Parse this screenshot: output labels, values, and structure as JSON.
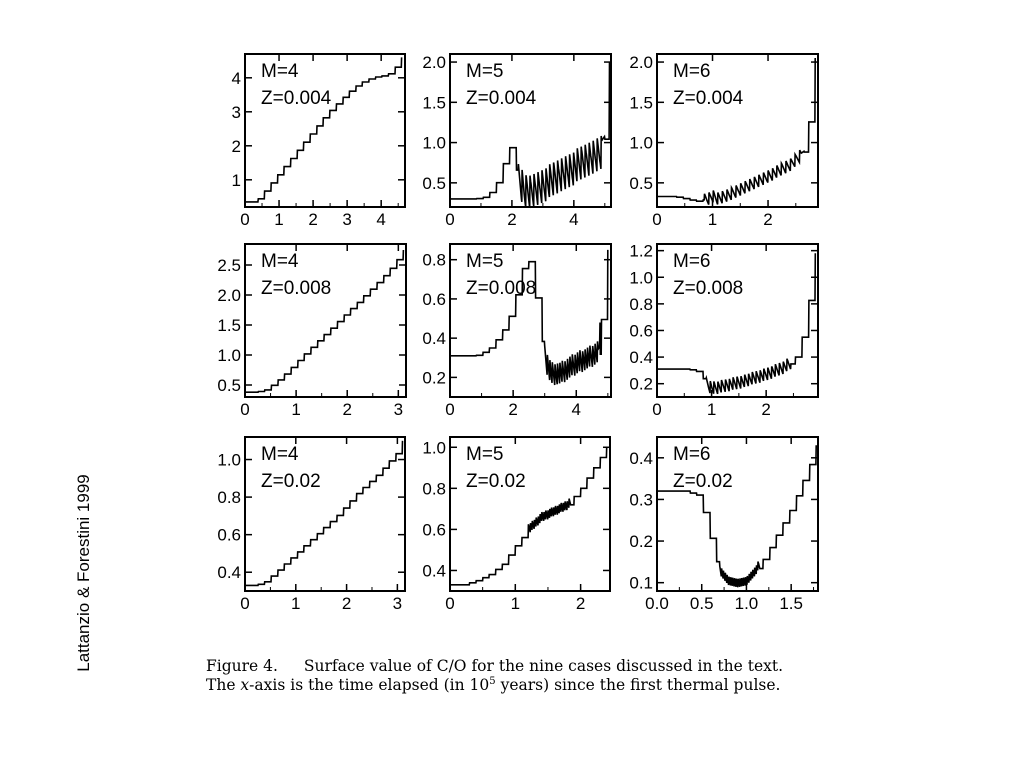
{
  "side_label": "Lattanzio & Forestini 1999",
  "caption": {
    "lead": "Figure 4.",
    "text_a": "Surface value of C/O for the nine cases discussed in the text. The ",
    "x_var": "x",
    "text_b": "-axis is the time elapsed (in 10",
    "sup": "5",
    "text_c": " years) since the first thermal pulse."
  },
  "chart_data": [
    {
      "type": "line",
      "title_lines": [
        "M=4",
        "Z=0.004"
      ],
      "x_ticks": [
        0,
        1,
        2,
        3,
        4
      ],
      "y_ticks": [
        1.0,
        2.0,
        3.0,
        4.0
      ],
      "xlim": [
        0,
        4.7
      ],
      "ylim": [
        0.2,
        4.7
      ],
      "x": [
        0.0,
        0.2,
        0.4,
        0.6,
        0.8,
        1.0,
        1.2,
        1.4,
        1.6,
        1.8,
        2.0,
        2.2,
        2.4,
        2.6,
        2.8,
        3.0,
        3.2,
        3.4,
        3.6,
        3.8,
        4.0,
        4.2,
        4.4,
        4.6
      ],
      "y": [
        0.35,
        0.35,
        0.45,
        0.7,
        0.95,
        1.2,
        1.45,
        1.7,
        1.95,
        2.2,
        2.45,
        2.7,
        2.95,
        3.15,
        3.35,
        3.55,
        3.72,
        3.85,
        3.95,
        4.02,
        4.05,
        4.1,
        4.3,
        4.6
      ]
    },
    {
      "type": "line",
      "title_lines": [
        "M=5",
        "Z=0.004"
      ],
      "x_ticks": [
        0,
        2,
        4
      ],
      "y_ticks": [
        0.5,
        1.0,
        1.5,
        2.0
      ],
      "xlim": [
        0,
        5.2
      ],
      "ylim": [
        0.2,
        2.1
      ],
      "x": [
        0.0,
        0.8,
        1.2,
        1.5,
        1.7,
        1.85,
        1.95,
        2.05,
        2.2,
        2.4,
        2.6,
        3.0,
        3.4,
        3.8,
        4.2,
        4.6,
        4.9,
        5.1,
        5.15
      ],
      "y": [
        0.3,
        0.3,
        0.33,
        0.5,
        0.72,
        0.88,
        0.95,
        0.85,
        0.55,
        0.38,
        0.38,
        0.47,
        0.55,
        0.65,
        0.73,
        0.82,
        0.9,
        1.7,
        2.0
      ],
      "oscillation": {
        "from_x": 2.2,
        "to_x": 5.0,
        "amplitude": 0.22
      }
    },
    {
      "type": "line",
      "title_lines": [
        "M=6",
        "Z=0.004"
      ],
      "x_ticks": [
        0,
        1,
        2
      ],
      "y_ticks": [
        0.5,
        1.0,
        1.5,
        2.0
      ],
      "xlim": [
        0,
        2.9
      ],
      "ylim": [
        0.2,
        2.1
      ],
      "x": [
        0.0,
        0.3,
        0.5,
        0.7,
        0.9,
        1.0,
        1.1,
        1.3,
        1.6,
        1.9,
        2.2,
        2.4,
        2.6,
        2.7,
        2.8,
        2.85
      ],
      "y": [
        0.33,
        0.33,
        0.3,
        0.27,
        0.3,
        0.33,
        0.3,
        0.35,
        0.45,
        0.55,
        0.65,
        0.72,
        0.85,
        1.1,
        1.6,
        2.05
      ],
      "oscillation": {
        "from_x": 0.85,
        "to_x": 2.65,
        "amplitude": 0.08
      }
    },
    {
      "type": "line",
      "title_lines": [
        "M=4",
        "Z=0.008"
      ],
      "x_ticks": [
        0,
        1,
        2,
        3
      ],
      "y_ticks": [
        0.5,
        1.0,
        1.5,
        2.0,
        2.5
      ],
      "xlim": [
        0,
        3.15
      ],
      "ylim": [
        0.3,
        2.85
      ],
      "x": [
        0.0,
        0.2,
        0.4,
        0.6,
        0.8,
        1.0,
        1.2,
        1.4,
        1.6,
        1.8,
        2.0,
        2.2,
        2.4,
        2.6,
        2.8,
        3.0,
        3.1
      ],
      "y": [
        0.38,
        0.38,
        0.42,
        0.55,
        0.7,
        0.88,
        1.05,
        1.22,
        1.38,
        1.55,
        1.72,
        1.88,
        2.05,
        2.22,
        2.4,
        2.62,
        2.75
      ]
    },
    {
      "type": "line",
      "title_lines": [
        "M=5",
        "Z=0.008"
      ],
      "x_ticks": [
        0,
        2,
        4
      ],
      "y_ticks": [
        0.2,
        0.4,
        0.6,
        0.8
      ],
      "xlim": [
        0,
        5.1
      ],
      "ylim": [
        0.1,
        0.88
      ],
      "x": [
        0.0,
        0.8,
        1.2,
        1.6,
        1.9,
        2.1,
        2.3,
        2.45,
        2.6,
        2.8,
        3.0,
        3.2,
        3.5,
        3.8,
        4.1,
        4.4,
        4.7,
        4.85,
        5.0
      ],
      "y": [
        0.31,
        0.31,
        0.34,
        0.42,
        0.52,
        0.63,
        0.76,
        0.82,
        0.73,
        0.5,
        0.3,
        0.22,
        0.22,
        0.25,
        0.28,
        0.3,
        0.33,
        0.6,
        0.85
      ],
      "oscillation": {
        "from_x": 3.0,
        "to_x": 4.75,
        "amplitude": 0.06
      }
    },
    {
      "type": "line",
      "title_lines": [
        "M=6",
        "Z=0.008"
      ],
      "x_ticks": [
        0,
        1,
        2
      ],
      "y_ticks": [
        0.2,
        0.4,
        0.6,
        0.8,
        1.0,
        1.2
      ],
      "xlim": [
        0,
        2.95
      ],
      "ylim": [
        0.1,
        1.25
      ],
      "x": [
        0.0,
        0.5,
        0.7,
        0.8,
        0.9,
        1.0,
        1.1,
        1.3,
        1.6,
        2.0,
        2.3,
        2.5,
        2.6,
        2.7,
        2.8,
        2.9
      ],
      "y": [
        0.31,
        0.31,
        0.3,
        0.27,
        0.2,
        0.17,
        0.17,
        0.19,
        0.22,
        0.27,
        0.32,
        0.37,
        0.45,
        0.62,
        0.88,
        1.18
      ],
      "oscillation": {
        "from_x": 0.9,
        "to_x": 2.45,
        "amplitude": 0.05
      }
    },
    {
      "type": "line",
      "title_lines": [
        "M=4",
        "Z=0.02"
      ],
      "x_ticks": [
        0,
        1,
        2,
        3
      ],
      "y_ticks": [
        0.4,
        0.6,
        0.8,
        1.0
      ],
      "xlim": [
        0,
        3.15
      ],
      "ylim": [
        0.3,
        1.12
      ],
      "x": [
        0.0,
        0.2,
        0.4,
        0.6,
        0.8,
        1.0,
        1.2,
        1.4,
        1.6,
        1.8,
        2.0,
        2.2,
        2.4,
        2.6,
        2.8,
        3.0,
        3.1
      ],
      "y": [
        0.33,
        0.33,
        0.35,
        0.4,
        0.45,
        0.5,
        0.55,
        0.6,
        0.65,
        0.7,
        0.76,
        0.82,
        0.87,
        0.92,
        0.98,
        1.04,
        1.1
      ]
    },
    {
      "type": "line",
      "title_lines": [
        "M=5",
        "Z=0.02"
      ],
      "x_ticks": [
        0,
        1,
        2
      ],
      "y_ticks": [
        0.4,
        0.6,
        0.8,
        1.0
      ],
      "xlim": [
        0,
        2.45
      ],
      "ylim": [
        0.3,
        1.05
      ],
      "x": [
        0.0,
        0.2,
        0.4,
        0.6,
        0.8,
        1.0,
        1.2,
        1.4,
        1.6,
        1.8,
        2.0,
        2.2,
        2.4
      ],
      "y": [
        0.33,
        0.33,
        0.35,
        0.38,
        0.43,
        0.52,
        0.6,
        0.66,
        0.69,
        0.72,
        0.8,
        0.9,
        1.0
      ],
      "oscillation": {
        "from_x": 1.2,
        "to_x": 1.85,
        "amplitude": 0.025
      }
    },
    {
      "type": "line",
      "title_lines": [
        "M=6",
        "Z=0.02"
      ],
      "x_ticks": [
        0,
        0.5,
        1,
        1.5
      ],
      "y_ticks": [
        0.1,
        0.2,
        0.3,
        0.4
      ],
      "xlim": [
        0,
        1.8
      ],
      "ylim": [
        0.08,
        0.45
      ],
      "x": [
        0.0,
        0.3,
        0.45,
        0.55,
        0.62,
        0.7,
        0.8,
        0.9,
        1.0,
        1.1,
        1.2,
        1.3,
        1.4,
        1.5,
        1.6,
        1.7,
        1.78
      ],
      "y": [
        0.32,
        0.32,
        0.31,
        0.25,
        0.18,
        0.13,
        0.105,
        0.1,
        0.105,
        0.13,
        0.16,
        0.2,
        0.24,
        0.28,
        0.33,
        0.38,
        0.43
      ],
      "oscillation": {
        "from_x": 0.7,
        "to_x": 1.15,
        "amplitude": 0.012
      }
    }
  ]
}
